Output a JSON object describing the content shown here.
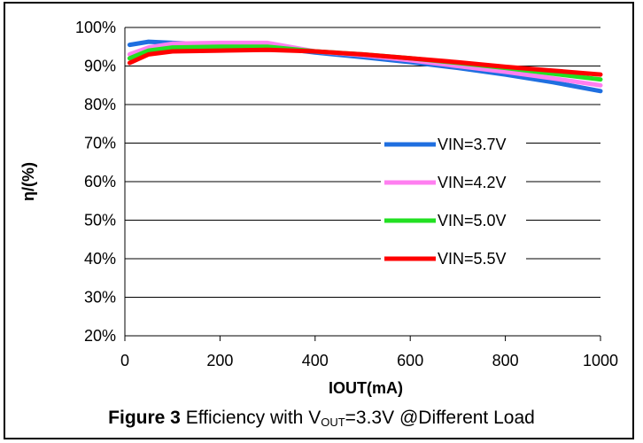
{
  "chart_data": {
    "type": "line",
    "xlabel": "IOUT(mA)",
    "ylabel": "η/(%)",
    "xlim": [
      0,
      1000
    ],
    "ylim": [
      20,
      100
    ],
    "x_ticks": [
      "0",
      "200",
      "400",
      "600",
      "800",
      "1000"
    ],
    "y_ticks": [
      "20%",
      "30%",
      "40%",
      "50%",
      "60%",
      "70%",
      "80%",
      "90%",
      "100%"
    ],
    "grid": "horizontal",
    "legend_position": "center-right",
    "series": [
      {
        "name": "VIN=3.7V",
        "color": "#1f6fe0",
        "x": [
          10,
          50,
          100,
          200,
          300,
          400,
          500,
          600,
          700,
          800,
          900,
          1000
        ],
        "y": [
          95.5,
          96.3,
          96.0,
          95.5,
          95.0,
          93.5,
          92.3,
          91.0,
          89.5,
          87.8,
          85.8,
          83.5
        ]
      },
      {
        "name": "VIN=4.2V",
        "color": "#ff7ff0",
        "x": [
          10,
          50,
          100,
          200,
          300,
          400,
          500,
          600,
          700,
          800,
          900,
          1000
        ],
        "y": [
          93.0,
          94.8,
          95.8,
          96.0,
          96.0,
          93.8,
          92.8,
          91.5,
          90.0,
          88.5,
          86.8,
          85.0
        ]
      },
      {
        "name": "VIN=5.0V",
        "color": "#22e022",
        "x": [
          10,
          50,
          100,
          200,
          300,
          400,
          500,
          600,
          700,
          800,
          900,
          1000
        ],
        "y": [
          92.0,
          94.0,
          94.8,
          95.0,
          95.0,
          93.8,
          93.0,
          92.0,
          90.8,
          89.5,
          88.0,
          86.5
        ]
      },
      {
        "name": "VIN=5.5V",
        "color": "#ff0000",
        "x": [
          10,
          50,
          100,
          200,
          300,
          400,
          500,
          600,
          700,
          800,
          900,
          1000
        ],
        "y": [
          90.8,
          93.0,
          93.8,
          94.0,
          94.2,
          93.8,
          93.0,
          92.0,
          91.0,
          89.8,
          88.8,
          87.8
        ]
      }
    ]
  },
  "caption": {
    "label": "Figure 3",
    "text_before_sub": " Efficiency with V",
    "subscript": "OUT",
    "text_after_sub": "=3.3V @Different Load"
  }
}
